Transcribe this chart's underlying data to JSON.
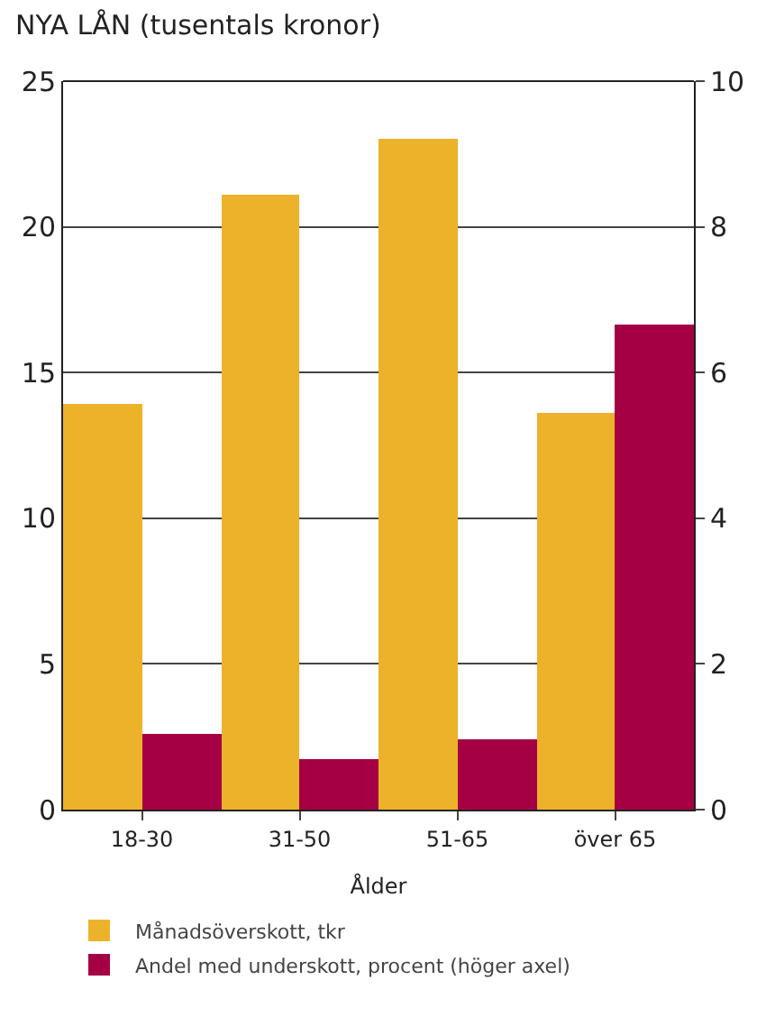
{
  "chart_data": {
    "type": "bar",
    "title": "NYA LÅN (tusentals kronor)",
    "xlabel": "Ålder",
    "categories": [
      "18-30",
      "31-50",
      "51-65",
      "över 65"
    ],
    "series": [
      {
        "name": "Månadsöverskott, tkr",
        "color": "#ecb22a",
        "values": [
          13.9,
          21.1,
          23.0,
          13.6
        ]
      },
      {
        "name": "Andel med underskott, procent (höger axel)",
        "color": "#a50044",
        "values": [
          1.05,
          0.7,
          0.96,
          6.67
        ],
        "axis": "y2"
      }
    ],
    "ylim": [
      0,
      25
    ],
    "yticks": [
      0,
      5,
      10,
      15,
      20,
      25
    ],
    "y2lim": [
      0,
      10
    ],
    "y2ticks": [
      0,
      2,
      4,
      6,
      8,
      10
    ],
    "grid": "y",
    "legend": "bottom"
  }
}
